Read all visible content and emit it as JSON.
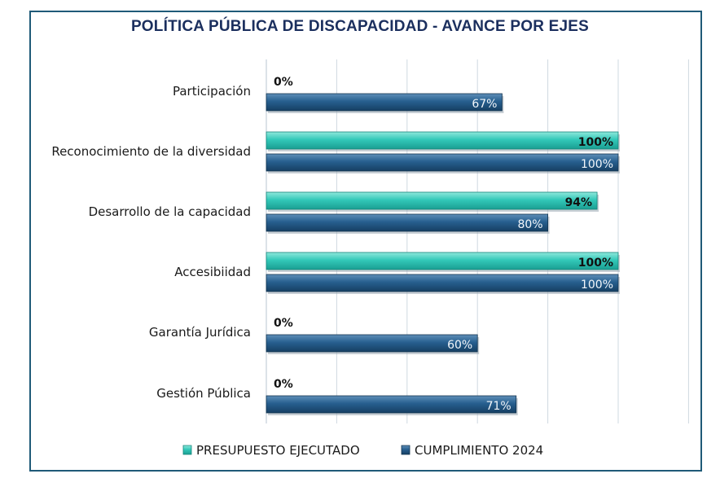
{
  "chart_data": {
    "type": "bar",
    "orientation": "horizontal",
    "title": "POLÍTICA PÚBLICA DE DISCAPACIDAD - AVANCE  POR EJES",
    "categories": [
      "Participación",
      "Reconocimiento de la diversidad",
      "Desarrollo de la capacidad",
      "Accesibiidad",
      "Garantía Jurídica",
      "Gestión Pública"
    ],
    "series": [
      {
        "name": "PRESUPUESTO EJECUTADO",
        "values": [
          0,
          100,
          94,
          100,
          0,
          0
        ],
        "labels": [
          "0%",
          "100%",
          "94%",
          "100%",
          "0%",
          "0%"
        ],
        "color": "#2ec4b6"
      },
      {
        "name": "CUMPLIMIENTO 2024",
        "values": [
          67,
          100,
          80,
          100,
          60,
          71
        ],
        "labels": [
          "67%",
          "100%",
          "80%",
          "100%",
          "60%",
          "71%"
        ],
        "color": "#1f5f8b"
      }
    ],
    "xlim": [
      0,
      120
    ],
    "grid": true,
    "legend": "bottom"
  }
}
